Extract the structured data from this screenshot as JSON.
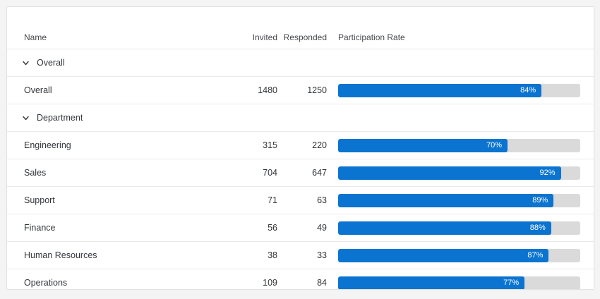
{
  "colors": {
    "bar_fill": "#0b74d0",
    "bar_track": "#dadada",
    "bar_label_text": "#ffffff",
    "card_background": "#ffffff",
    "page_background": "#f4f4f5"
  },
  "icons": {
    "group_toggle": "chevron-down-icon"
  },
  "table": {
    "headers": {
      "name": "Name",
      "invited": "Invited",
      "responded": "Responded",
      "rate": "Participation Rate"
    },
    "groups": [
      {
        "label": "Overall",
        "expanded": true,
        "rows": [
          {
            "name": "Overall",
            "invited": "1480",
            "responded": "1250",
            "rate_percent": 84,
            "rate_label": "84%"
          }
        ]
      },
      {
        "label": "Department",
        "expanded": true,
        "rows": [
          {
            "name": "Engineering",
            "invited": "315",
            "responded": "220",
            "rate_percent": 70,
            "rate_label": "70%"
          },
          {
            "name": "Sales",
            "invited": "704",
            "responded": "647",
            "rate_percent": 92,
            "rate_label": "92%"
          },
          {
            "name": "Support",
            "invited": "71",
            "responded": "63",
            "rate_percent": 89,
            "rate_label": "89%"
          },
          {
            "name": "Finance",
            "invited": "56",
            "responded": "49",
            "rate_percent": 88,
            "rate_label": "88%"
          },
          {
            "name": "Human Resources",
            "invited": "38",
            "responded": "33",
            "rate_percent": 87,
            "rate_label": "87%"
          },
          {
            "name": "Operations",
            "invited": "109",
            "responded": "84",
            "rate_percent": 77,
            "rate_label": "77%"
          }
        ]
      }
    ]
  }
}
